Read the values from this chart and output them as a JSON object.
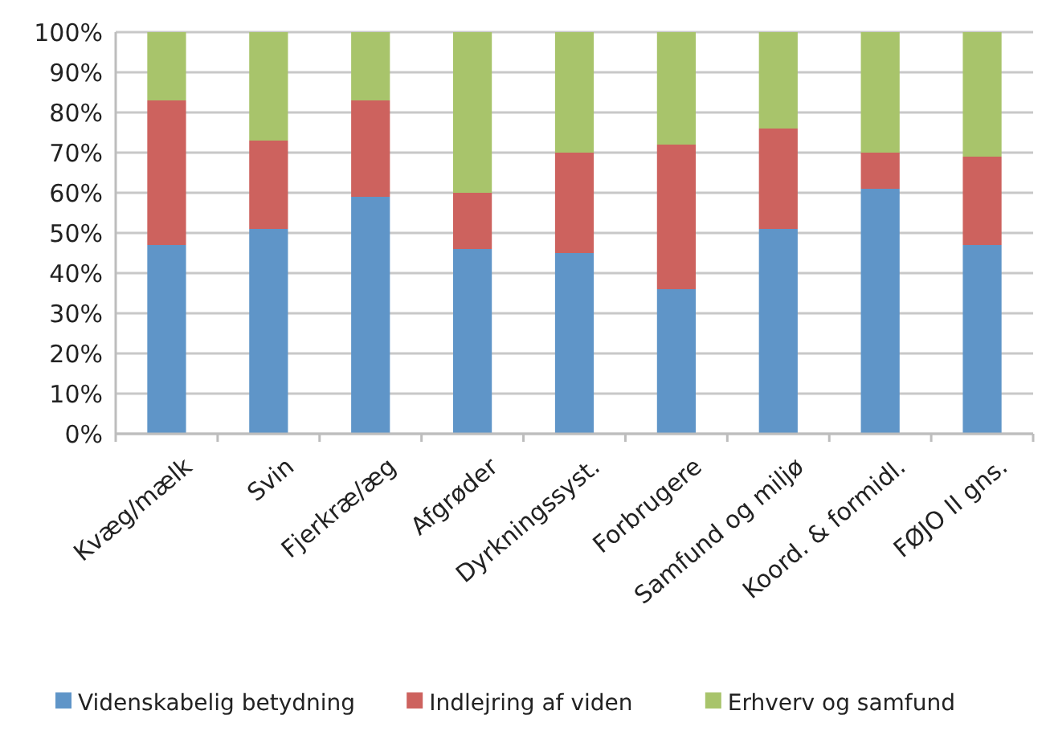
{
  "chart_data": {
    "type": "bar",
    "stacked": true,
    "categories": [
      "Kvæg/mælk",
      "Svin",
      "Fjerkræ/æg",
      "Afgrøder",
      "Dyrkningssyst.",
      "Forbrugere",
      "Samfund og miljø",
      "Koord. & formidl.",
      "FØJO II gns."
    ],
    "series": [
      {
        "name": "Videnskabelig betydning",
        "color": "#5f95c8",
        "values": [
          47,
          51,
          59,
          46,
          45,
          36,
          51,
          61,
          47
        ]
      },
      {
        "name": "Indlejring af viden",
        "color": "#cd625e",
        "values": [
          36,
          22,
          24,
          14,
          25,
          36,
          25,
          9,
          22
        ]
      },
      {
        "name": "Erhverv og samfund",
        "color": "#a8c46b",
        "values": [
          17,
          27,
          17,
          40,
          30,
          28,
          24,
          30,
          31
        ]
      }
    ],
    "ylim": [
      0,
      100
    ],
    "yticks": [
      {
        "value": 0,
        "label": "0%"
      },
      {
        "value": 10,
        "label": "10%"
      },
      {
        "value": 20,
        "label": "20%"
      },
      {
        "value": 30,
        "label": "30%"
      },
      {
        "value": 40,
        "label": "40%"
      },
      {
        "value": 50,
        "label": "50%"
      },
      {
        "value": 60,
        "label": "60%"
      },
      {
        "value": 70,
        "label": "70%"
      },
      {
        "value": 80,
        "label": "80%"
      },
      {
        "value": 90,
        "label": "90%"
      },
      {
        "value": 100,
        "label": "100%"
      }
    ],
    "grid": "y",
    "legend": "bottom"
  }
}
